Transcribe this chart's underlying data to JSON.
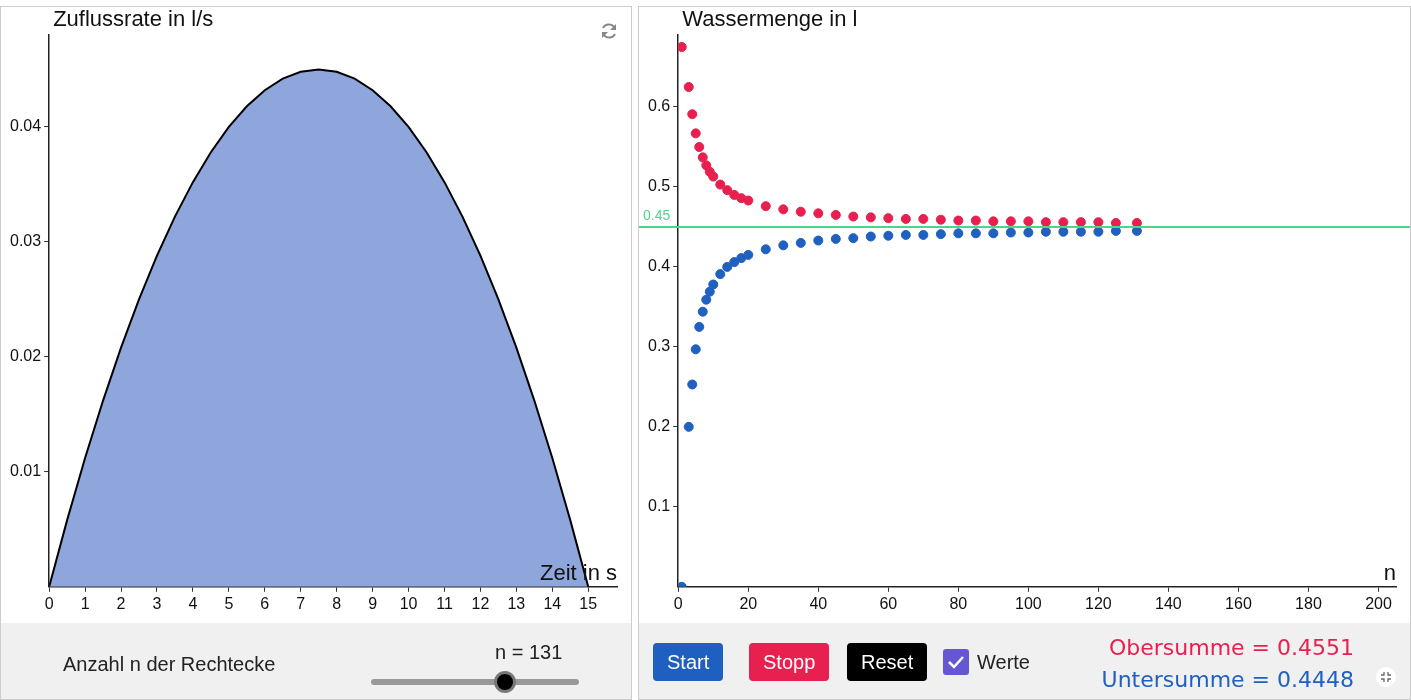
{
  "chart_data": [
    {
      "type": "area",
      "xlabel": "Zeit in s",
      "ylabel": "Zuflussrate in l/s",
      "x": [
        0,
        0.5,
        1,
        1.5,
        2,
        2.5,
        3,
        3.5,
        4,
        4.5,
        5,
        5.5,
        6,
        6.5,
        7,
        7.5,
        8,
        8.5,
        9,
        9.5,
        10,
        10.5,
        11,
        11.5,
        12,
        12.5,
        13,
        13.5,
        14,
        14.5,
        15
      ],
      "series": [
        {
          "color": "#8ea6dc",
          "values": [
            0,
            0.0058,
            0.0112,
            0.0162,
            0.0208,
            0.025,
            0.0288,
            0.0322,
            0.0352,
            0.0378,
            0.04,
            0.0418,
            0.0432,
            0.0442,
            0.0448,
            0.045,
            0.0448,
            0.0442,
            0.0432,
            0.0418,
            0.04,
            0.0378,
            0.0352,
            0.0322,
            0.0288,
            0.025,
            0.0208,
            0.0162,
            0.0112,
            0.0058,
            0
          ]
        }
      ],
      "xlim": [
        0,
        15.8
      ],
      "xticks": [
        0,
        1,
        2,
        3,
        4,
        5,
        6,
        7,
        8,
        9,
        10,
        11,
        12,
        13,
        14,
        15
      ],
      "ylim": [
        0,
        0.048
      ],
      "yticks": [
        0.01,
        0.02,
        0.03,
        0.04
      ],
      "annotations": [
        "Anzahl n der Rechtecke",
        "n = 131"
      ]
    },
    {
      "type": "scatter",
      "xlabel": "n",
      "ylabel": "Wassermenge in l",
      "marker": "circle",
      "x": [
        1,
        3,
        4,
        5,
        6,
        7,
        8,
        9,
        10,
        12,
        14,
        16,
        18,
        20,
        25,
        30,
        35,
        40,
        45,
        50,
        55,
        60,
        65,
        70,
        75,
        80,
        85,
        90,
        95,
        100,
        105,
        110,
        115,
        120,
        125,
        131
      ],
      "series": [
        {
          "color": "#e8204f",
          "values": [
            0.675,
            0.625,
            0.591,
            0.567,
            0.55,
            0.537,
            0.527,
            0.519,
            0.513,
            0.503,
            0.496,
            0.49,
            0.486,
            0.483,
            0.476,
            0.472,
            0.469,
            0.467,
            0.465,
            0.463,
            0.462,
            0.461,
            0.46,
            0.46,
            0.459,
            0.458,
            0.458,
            0.457,
            0.457,
            0.457,
            0.456,
            0.456,
            0.456,
            0.456,
            0.455,
            0.455
          ]
        },
        {
          "color": "#2060c0",
          "values": [
            0,
            0.2,
            0.253,
            0.297,
            0.325,
            0.344,
            0.359,
            0.369,
            0.378,
            0.391,
            0.4,
            0.406,
            0.411,
            0.415,
            0.422,
            0.427,
            0.43,
            0.433,
            0.435,
            0.436,
            0.438,
            0.439,
            0.44,
            0.44,
            0.441,
            0.442,
            0.442,
            0.442,
            0.443,
            0.443,
            0.444,
            0.444,
            0.444,
            0.444,
            0.445,
            0.445
          ]
        }
      ],
      "xlim": [
        0,
        205
      ],
      "xticks": [
        0,
        20,
        40,
        60,
        80,
        100,
        120,
        140,
        160,
        180,
        200
      ],
      "ylim": [
        0,
        0.69
      ],
      "yticks": [
        0.1,
        0.2,
        0.3,
        0.4,
        0.5,
        0.6
      ],
      "ref_lines": [
        {
          "axis": "y",
          "value": 0.45,
          "label": "0.45",
          "color": "#4cd68a"
        }
      ],
      "annotations": [
        "Start",
        "Stopp",
        "Reset",
        "Werte",
        "Obersumme = 0.4551",
        "Untersumme = 0.4448"
      ]
    }
  ]
}
